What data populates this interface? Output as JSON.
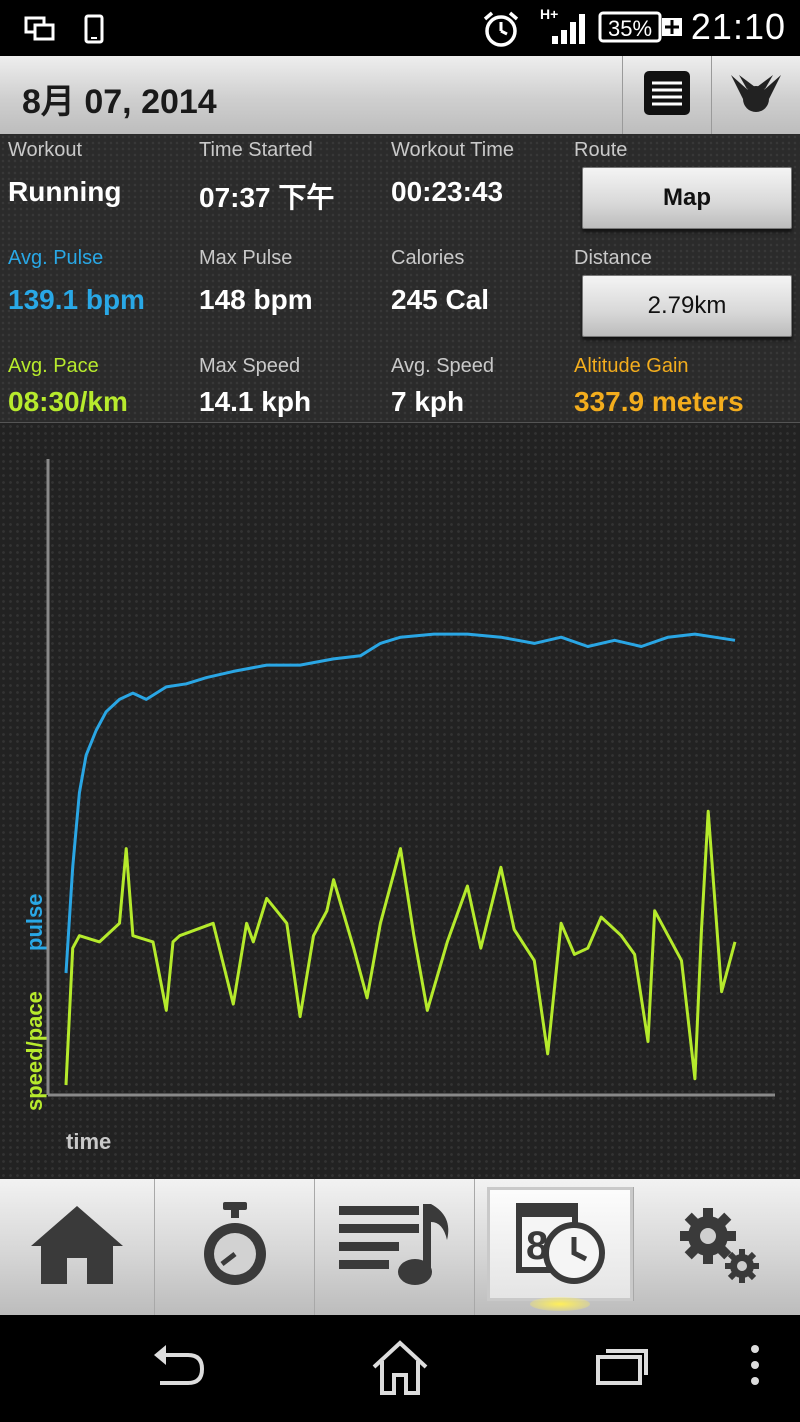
{
  "status_bar": {
    "time": "21:10",
    "battery": "35%",
    "network": "H+",
    "icons": [
      "multi-window-icon",
      "phone-icon",
      "alarm-icon",
      "signal-icon",
      "battery-icon"
    ]
  },
  "header": {
    "date": "8月 07, 2014",
    "icons": [
      "list-icon",
      "share-icon"
    ]
  },
  "stats": {
    "workout": {
      "label": "Workout",
      "value": "Running"
    },
    "time_started": {
      "label": "Time Started",
      "value": "07:37 下午"
    },
    "workout_time": {
      "label": "Workout Time",
      "value": "00:23:43"
    },
    "route": {
      "label": "Route",
      "button": "Map"
    },
    "avg_pulse": {
      "label": "Avg. Pulse",
      "value": "139.1 bpm"
    },
    "max_pulse": {
      "label": "Max Pulse",
      "value": "148 bpm"
    },
    "calories": {
      "label": "Calories",
      "value": "245 Cal"
    },
    "distance": {
      "label": "Distance",
      "button": "2.79km"
    },
    "avg_pace": {
      "label": "Avg. Pace",
      "value": "08:30/km"
    },
    "max_speed": {
      "label": "Max Speed",
      "value": "14.1 kph"
    },
    "avg_speed": {
      "label": "Avg. Speed",
      "value": "7 kph"
    },
    "altitude_gain": {
      "label": "Altitude Gain",
      "value": "337.9 meters"
    }
  },
  "chart_data": {
    "type": "line",
    "xlabel": "time",
    "ylabel_series": [
      "speed/pace",
      "pulse"
    ],
    "grid": false,
    "ylim": [
      0,
      1
    ],
    "xlim": [
      0,
      1
    ],
    "colors": {
      "pulse": "#2aa6e4",
      "speed": "#b5ea2c",
      "axis": "#8a8a8a"
    },
    "series": [
      {
        "name": "pulse",
        "x": [
          0,
          0.01,
          0.02,
          0.03,
          0.045,
          0.06,
          0.08,
          0.1,
          0.12,
          0.15,
          0.18,
          0.21,
          0.25,
          0.3,
          0.35,
          0.4,
          0.44,
          0.47,
          0.5,
          0.55,
          0.6,
          0.65,
          0.7,
          0.74,
          0.78,
          0.82,
          0.86,
          0.9,
          0.94,
          0.97,
          1.0
        ],
        "y": [
          0.18,
          0.35,
          0.47,
          0.53,
          0.57,
          0.6,
          0.62,
          0.63,
          0.62,
          0.64,
          0.645,
          0.655,
          0.665,
          0.675,
          0.675,
          0.685,
          0.69,
          0.71,
          0.72,
          0.725,
          0.725,
          0.72,
          0.71,
          0.72,
          0.705,
          0.715,
          0.705,
          0.72,
          0.725,
          0.72,
          0.715
        ]
      },
      {
        "name": "speed/pace",
        "x": [
          0,
          0.01,
          0.02,
          0.05,
          0.08,
          0.09,
          0.1,
          0.13,
          0.15,
          0.16,
          0.17,
          0.22,
          0.25,
          0.27,
          0.28,
          0.3,
          0.33,
          0.35,
          0.37,
          0.39,
          0.4,
          0.43,
          0.45,
          0.47,
          0.5,
          0.52,
          0.54,
          0.57,
          0.6,
          0.62,
          0.65,
          0.67,
          0.7,
          0.72,
          0.74,
          0.76,
          0.78,
          0.8,
          0.83,
          0.85,
          0.87,
          0.88,
          0.9,
          0.92,
          0.94,
          0.95,
          0.96,
          0.98,
          1.0
        ],
        "y": [
          0.0,
          0.22,
          0.24,
          0.23,
          0.26,
          0.38,
          0.24,
          0.23,
          0.12,
          0.23,
          0.24,
          0.26,
          0.13,
          0.26,
          0.23,
          0.3,
          0.26,
          0.11,
          0.24,
          0.28,
          0.33,
          0.22,
          0.14,
          0.26,
          0.38,
          0.24,
          0.12,
          0.23,
          0.32,
          0.22,
          0.35,
          0.25,
          0.2,
          0.05,
          0.26,
          0.21,
          0.22,
          0.27,
          0.24,
          0.21,
          0.07,
          0.28,
          0.24,
          0.2,
          0.01,
          0.25,
          0.44,
          0.15,
          0.23
        ]
      }
    ]
  },
  "tabs": [
    {
      "name": "home",
      "icon": "home-icon"
    },
    {
      "name": "stopwatch",
      "icon": "stopwatch-icon"
    },
    {
      "name": "playlist",
      "icon": "playlist-music-icon"
    },
    {
      "name": "history",
      "icon": "calendar-clock-icon",
      "active": true
    },
    {
      "name": "settings",
      "icon": "settings-gears-icon"
    }
  ],
  "nav": [
    "back-icon",
    "home-icon",
    "recents-icon",
    "more-icon"
  ]
}
